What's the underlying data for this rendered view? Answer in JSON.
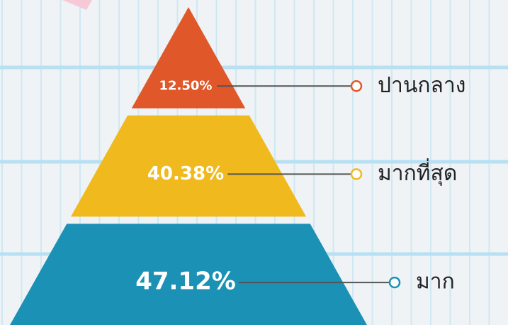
{
  "chart_data": {
    "type": "pyramid",
    "categories": [
      "ปานกลาง",
      "มากที่สุด",
      "มาก"
    ],
    "values": [
      12.5,
      40.38,
      47.12
    ],
    "value_labels": [
      "12.50%",
      "40.38%",
      "47.12%"
    ],
    "colors": [
      "#e0582a",
      "#f0ba1e",
      "#1b91b6"
    ]
  }
}
